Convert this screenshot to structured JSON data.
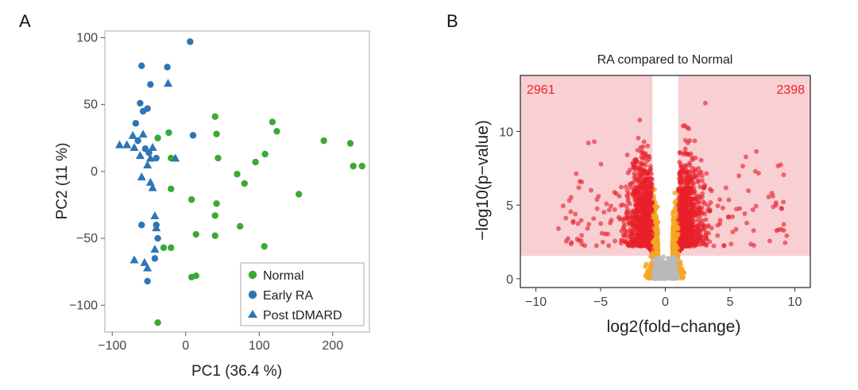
{
  "panels": {
    "a_label": "A",
    "b_label": "B"
  },
  "chart_data": [
    {
      "type": "scatter",
      "panel": "A",
      "title": "",
      "xlabel": "PC1 (36.4 %)",
      "ylabel": "PC2 (11 %)",
      "xlim": [
        -110,
        250
      ],
      "ylim": [
        -120,
        105
      ],
      "xticks": [
        -100,
        0,
        100,
        200
      ],
      "yticks": [
        -100,
        -50,
        0,
        50,
        100
      ],
      "xtick_labels": [
        "−100",
        "0",
        "100",
        "200"
      ],
      "ytick_labels": [
        "−100",
        "−50",
        "0",
        "50",
        "100"
      ],
      "grid": false,
      "legend_position": "bottom-right",
      "series": [
        {
          "name": "Normal",
          "marker": "circle",
          "color": "#3aaa35",
          "points": [
            [
              -38,
              25
            ],
            [
              -23,
              29
            ],
            [
              -30,
              -57
            ],
            [
              -20,
              -57
            ],
            [
              -38,
              -113
            ],
            [
              -20,
              10
            ],
            [
              -20,
              -13
            ],
            [
              8,
              -21
            ],
            [
              40,
              41
            ],
            [
              42,
              28
            ],
            [
              44,
              10
            ],
            [
              42,
              -24
            ],
            [
              40,
              -33
            ],
            [
              40,
              -48
            ],
            [
              14,
              -47
            ],
            [
              8,
              -79
            ],
            [
              14,
              -78
            ],
            [
              70,
              -2
            ],
            [
              74,
              -41
            ],
            [
              80,
              -9
            ],
            [
              95,
              7
            ],
            [
              108,
              13
            ],
            [
              107,
              -56
            ],
            [
              118,
              37
            ],
            [
              124,
              30
            ],
            [
              154,
              -17
            ],
            [
              188,
              23
            ],
            [
              224,
              21
            ],
            [
              228,
              4
            ],
            [
              240,
              4
            ]
          ]
        },
        {
          "name": "Early RA",
          "marker": "circle",
          "color": "#2e75b6",
          "points": [
            [
              6,
              97
            ],
            [
              -60,
              79
            ],
            [
              -25,
              78
            ],
            [
              -48,
              65
            ],
            [
              -62,
              51
            ],
            [
              -58,
              45
            ],
            [
              -52,
              47
            ],
            [
              -68,
              36
            ],
            [
              -65,
              23
            ],
            [
              -55,
              17
            ],
            [
              -50,
              14
            ],
            [
              -40,
              10
            ],
            [
              -60,
              -40
            ],
            [
              -40,
              -40
            ],
            [
              -38,
              -50
            ],
            [
              -42,
              -65
            ],
            [
              -52,
              -82
            ],
            [
              10,
              27
            ]
          ]
        },
        {
          "name": "Post tDMARD",
          "marker": "triangle",
          "color": "#2e75b6",
          "points": [
            [
              -24,
              66
            ],
            [
              -72,
              27
            ],
            [
              -58,
              28
            ],
            [
              -90,
              20
            ],
            [
              -80,
              20
            ],
            [
              -70,
              18
            ],
            [
              -62,
              12
            ],
            [
              -48,
              10
            ],
            [
              -45,
              18
            ],
            [
              -14,
              10
            ],
            [
              -52,
              5
            ],
            [
              -60,
              -4
            ],
            [
              -48,
              -8
            ],
            [
              -45,
              -12
            ],
            [
              -42,
              -33
            ],
            [
              -40,
              -42
            ],
            [
              -42,
              -58
            ],
            [
              -70,
              -66
            ],
            [
              -56,
              -68
            ],
            [
              -52,
              -72
            ]
          ]
        }
      ]
    },
    {
      "type": "scatter",
      "panel": "B",
      "title": "RA compared to Normal",
      "xlabel": "log2(fold−change)",
      "ylabel": "−log10(p−value)",
      "xlim": [
        -11.2,
        11.2
      ],
      "ylim": [
        -0.6,
        13.8
      ],
      "xticks": [
        -10,
        -5,
        0,
        5,
        10
      ],
      "yticks": [
        0,
        5,
        10
      ],
      "xtick_labels": [
        "−10",
        "−5",
        "0",
        "5",
        "10"
      ],
      "ytick_labels": [
        "0",
        "5",
        "10"
      ],
      "grid": false,
      "significance_threshold_y": 1.55,
      "fold_change_threshold_x": [
        -1,
        1
      ],
      "down_count": "2961",
      "up_count": "2398",
      "colors": {
        "region": "#f8d0d3",
        "significant": "#e8202a",
        "intermediate": "#f5a623",
        "not_significant": "#b8b8b8",
        "count_text": "#e8202a"
      }
    }
  ]
}
